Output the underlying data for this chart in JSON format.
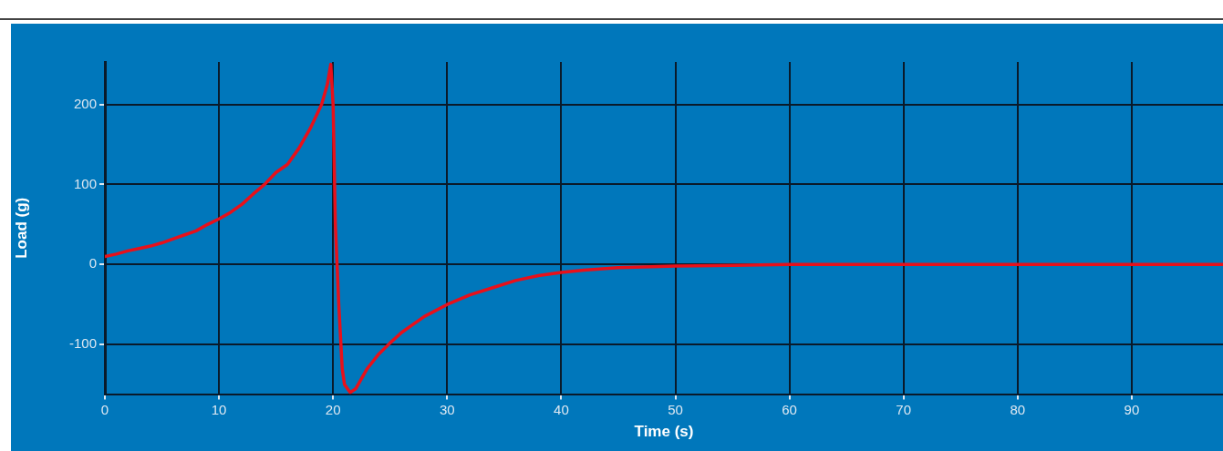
{
  "chart_data": {
    "type": "line",
    "xlabel": "Time (s)",
    "ylabel": "Load (g)",
    "series": [
      {
        "color": "#e8101a",
        "x": [
          0,
          1,
          2,
          3,
          4,
          5,
          6,
          7,
          8,
          9,
          10,
          11,
          12,
          13,
          14,
          15,
          16,
          17,
          18,
          19,
          19.5,
          19.8,
          20,
          20.2,
          20.5,
          20.8,
          21,
          21.5,
          22,
          23,
          24,
          25,
          26,
          27,
          28,
          30,
          32,
          34,
          36,
          38,
          40,
          42,
          45,
          50,
          55,
          60,
          65,
          70,
          75,
          80,
          85,
          90,
          95,
          98
        ],
        "values": [
          10,
          13,
          17,
          20,
          23,
          27,
          32,
          37,
          42,
          50,
          57,
          65,
          75,
          88,
          100,
          115,
          125,
          145,
          170,
          200,
          225,
          250,
          200,
          50,
          -50,
          -130,
          -150,
          -160,
          -155,
          -130,
          -112,
          -98,
          -85,
          -75,
          -65,
          -50,
          -38,
          -29,
          -20,
          -14,
          -10,
          -7,
          -4,
          -2,
          -1,
          0,
          0,
          0,
          0,
          0,
          0,
          0,
          0,
          0
        ]
      }
    ],
    "xlim": [
      0,
      98
    ],
    "ylim": [
      -162,
      253
    ],
    "xticks": [
      0,
      10,
      20,
      30,
      40,
      50,
      60,
      70,
      80,
      90
    ],
    "yticks": [
      -100,
      0,
      100,
      200
    ],
    "grid": true,
    "legend": false,
    "marker": "none",
    "line_style": "solid"
  }
}
